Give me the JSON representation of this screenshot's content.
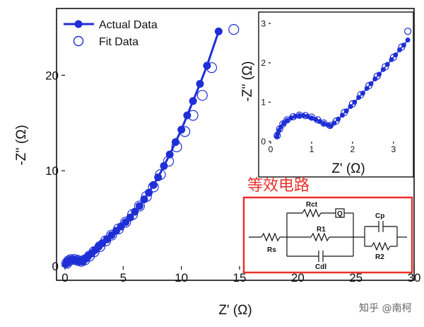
{
  "chart_data": [
    {
      "type": "scatter",
      "xlabel": "Z' (Ω)",
      "ylabel": "-Z'' (Ω)",
      "xlim": [
        0,
        30
      ],
      "ylim": [
        0,
        27
      ],
      "xticks": [
        0,
        5,
        10,
        15,
        20,
        25,
        30
      ],
      "yticks": [
        0,
        10,
        20
      ],
      "legend": {
        "placement": "top-left",
        "entries": [
          "Actual Data",
          "Fit Data"
        ]
      },
      "series": [
        {
          "name": "Actual Data",
          "style": "line-with-filled-markers",
          "color": "#1f2fd6",
          "x": [
            0.1,
            0.2,
            0.35,
            0.5,
            0.7,
            0.9,
            1.1,
            1.3,
            1.45,
            1.6,
            1.8,
            2.0,
            2.3,
            2.6,
            2.9,
            3.2,
            3.6,
            4.0,
            4.4,
            4.8,
            5.2,
            5.6,
            6.0,
            6.4,
            6.8,
            7.2,
            7.6,
            8.0,
            8.5,
            9.0,
            9.5,
            10.0,
            10.5,
            11.0,
            11.6,
            12.2,
            13.2
          ],
          "y": [
            0.25,
            0.45,
            0.6,
            0.68,
            0.7,
            0.65,
            0.58,
            0.5,
            0.48,
            0.6,
            0.8,
            1.05,
            1.35,
            1.7,
            2.05,
            2.4,
            2.8,
            3.25,
            3.7,
            4.15,
            4.6,
            5.1,
            5.7,
            6.3,
            7.0,
            7.7,
            8.5,
            9.3,
            10.5,
            11.7,
            13.0,
            14.3,
            15.8,
            17.3,
            19.1,
            21.0,
            24.6
          ]
        },
        {
          "name": "Fit Data",
          "style": "open-circles",
          "color": "#1f2fd6",
          "x": [
            0.15,
            0.3,
            0.5,
            0.8,
            1.1,
            1.4,
            1.7,
            2.1,
            2.5,
            3.0,
            3.5,
            4.0,
            4.6,
            5.2,
            5.8,
            6.4,
            7.0,
            7.6,
            8.2,
            8.9,
            9.6,
            10.3,
            11.0,
            11.8,
            12.6,
            14.5
          ],
          "y": [
            0.3,
            0.55,
            0.68,
            0.7,
            0.6,
            0.5,
            0.65,
            1.05,
            1.5,
            2.05,
            2.65,
            3.25,
            3.9,
            4.6,
            5.4,
            6.3,
            7.3,
            8.3,
            9.6,
            11.0,
            12.5,
            14.1,
            15.8,
            17.9,
            20.8,
            24.8
          ]
        }
      ]
    },
    {
      "type": "scatter",
      "xlabel": "Z' (Ω)",
      "ylabel": "-Z'' (Ω)",
      "xlim": [
        0,
        3.4
      ],
      "ylim": [
        0,
        3.2
      ],
      "xticks": [
        0,
        1,
        2,
        3
      ],
      "yticks": [
        0,
        1,
        2,
        3
      ],
      "series": [
        {
          "name": "Actual Data",
          "style": "line-with-filled-markers",
          "color": "#1f2fd6",
          "x": [
            0.15,
            0.17,
            0.2,
            0.25,
            0.32,
            0.4,
            0.5,
            0.6,
            0.7,
            0.8,
            0.9,
            1.0,
            1.1,
            1.2,
            1.3,
            1.4,
            1.47,
            1.55,
            1.65,
            1.75,
            1.85,
            1.95,
            2.05,
            2.15,
            2.25,
            2.35,
            2.45,
            2.55,
            2.65,
            2.75,
            2.85,
            2.95,
            3.05,
            3.15,
            3.25,
            3.35
          ],
          "y": [
            0.12,
            0.2,
            0.28,
            0.37,
            0.46,
            0.54,
            0.6,
            0.64,
            0.66,
            0.66,
            0.64,
            0.6,
            0.56,
            0.51,
            0.46,
            0.42,
            0.4,
            0.47,
            0.57,
            0.67,
            0.78,
            0.89,
            1.0,
            1.12,
            1.23,
            1.35,
            1.47,
            1.59,
            1.71,
            1.83,
            1.96,
            2.08,
            2.2,
            2.33,
            2.45,
            2.58
          ]
        },
        {
          "name": "Fit Data",
          "style": "open-circles",
          "color": "#1f2fd6",
          "x": [
            0.16,
            0.22,
            0.3,
            0.4,
            0.55,
            0.7,
            0.85,
            1.0,
            1.15,
            1.3,
            1.45,
            1.6,
            1.8,
            2.0,
            2.2,
            2.4,
            2.6,
            2.8,
            3.0,
            3.2,
            3.35
          ],
          "y": [
            0.15,
            0.32,
            0.45,
            0.55,
            0.63,
            0.67,
            0.66,
            0.62,
            0.55,
            0.47,
            0.41,
            0.52,
            0.74,
            0.96,
            1.19,
            1.42,
            1.66,
            1.9,
            2.14,
            2.4,
            2.8
          ]
        }
      ]
    }
  ],
  "circuit": {
    "title": "等效电路",
    "labels": {
      "rs": "Rs",
      "rct": "Rct",
      "q": "Q",
      "r1": "R1",
      "cdl": "Cdl",
      "cp": "Cp",
      "r2": "R2"
    }
  },
  "watermark": "知乎 @南柯",
  "colors": {
    "series": "#1f2fd6",
    "circuit_border": "#e8322c",
    "circuit_title": "#e8322c"
  }
}
